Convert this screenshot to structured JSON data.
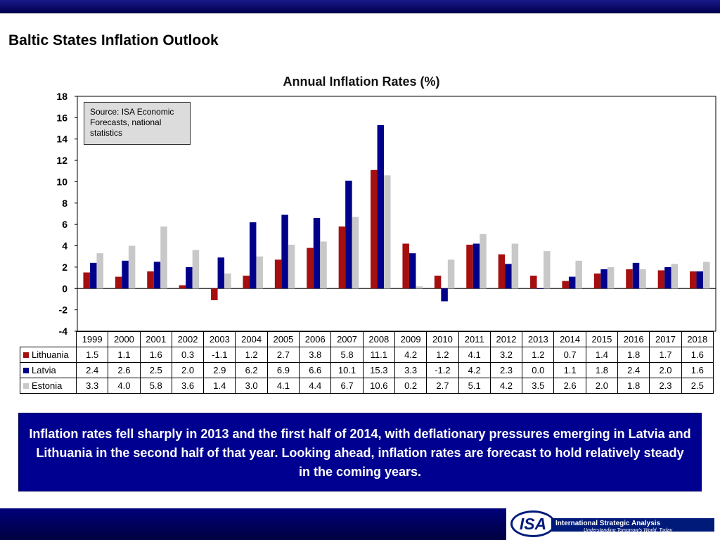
{
  "slide": {
    "title": "Baltic States Inflation Outlook",
    "summary": "Inflation rates fell sharply in 2013 and the first half of 2014, with deflationary pressures emerging in Latvia and Lithuania in the second half of that year.  Looking ahead, inflation rates are forecast to hold relatively steady in the coming years."
  },
  "source_note": "Source: ISA Economic Forecasts, national statistics",
  "logo": {
    "mark": "ISA",
    "name": "International Strategic Analysis",
    "tagline": "Understanding Tomorrow's World, Today"
  },
  "colors": {
    "lithuania": "#a50f0f",
    "latvia": "#00008b",
    "estonia": "#c8c8c8",
    "banner": "#000090"
  },
  "chart_data": {
    "type": "bar",
    "title": "Annual Inflation Rates (%)",
    "categories": [
      "1999",
      "2000",
      "2001",
      "2002",
      "2003",
      "2004",
      "2005",
      "2006",
      "2007",
      "2008",
      "2009",
      "2010",
      "2011",
      "2012",
      "2013",
      "2014",
      "2015",
      "2016",
      "2017",
      "2018"
    ],
    "series": [
      {
        "name": "Lithuania",
        "color": "#a50f0f",
        "values": [
          "1.5",
          "1.1",
          "1.6",
          "0.3",
          "-1.1",
          "1.2",
          "2.7",
          "3.8",
          "5.8",
          "11.1",
          "4.2",
          "1.2",
          "4.1",
          "3.2",
          "1.2",
          "0.7",
          "1.4",
          "1.8",
          "1.7",
          "1.6"
        ]
      },
      {
        "name": "Latvia",
        "color": "#00008b",
        "values": [
          "2.4",
          "2.6",
          "2.5",
          "2.0",
          "2.9",
          "6.2",
          "6.9",
          "6.6",
          "10.1",
          "15.3",
          "3.3",
          "-1.2",
          "4.2",
          "2.3",
          "0.0",
          "1.1",
          "1.8",
          "2.4",
          "2.0",
          "1.6"
        ]
      },
      {
        "name": "Estonia",
        "color": "#c8c8c8",
        "values": [
          "3.3",
          "4.0",
          "5.8",
          "3.6",
          "1.4",
          "3.0",
          "4.1",
          "4.4",
          "6.7",
          "10.6",
          "0.2",
          "2.7",
          "5.1",
          "4.2",
          "3.5",
          "2.6",
          "2.0",
          "1.8",
          "2.3",
          "2.5"
        ]
      }
    ],
    "ylim": [
      -4,
      18
    ],
    "yticks": [
      "18",
      "16",
      "14",
      "12",
      "10",
      "8",
      "6",
      "4",
      "2",
      "0",
      "-2",
      "-4"
    ],
    "legend": "data table below chart",
    "grid": false
  }
}
